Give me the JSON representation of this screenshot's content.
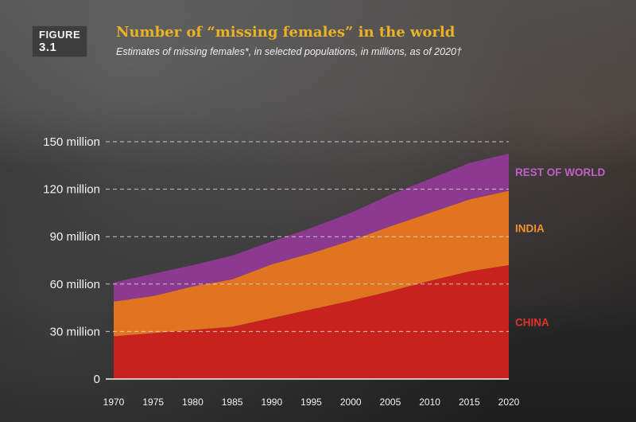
{
  "header": {
    "figure_prefix": "FIGURE",
    "figure_number": "3.1",
    "title": "Number of “missing females” in the world",
    "subtitle": "Estimates of missing females*, in selected populations, in millions, as of 2020†"
  },
  "colors": {
    "china": "#c8221e",
    "india": "#e07420",
    "rest_of_world": "#8b3a8f",
    "china_label": "#e0322a",
    "india_label": "#f0922e",
    "rest_label": "#c45ec8",
    "gridline": "#dddddd"
  },
  "chart_data": {
    "type": "area",
    "stacked": true,
    "title": "Number of “missing females” in the world",
    "x": [
      1970,
      1975,
      1980,
      1985,
      1990,
      1995,
      2000,
      2005,
      2010,
      2015,
      2020
    ],
    "series": [
      {
        "name": "CHINA",
        "key": "china",
        "values": [
          27,
          29,
          31,
          33,
          38.5,
          44,
          49.5,
          55.5,
          62,
          68,
          72
        ]
      },
      {
        "name": "INDIA",
        "key": "india",
        "values": [
          22,
          23.5,
          27.5,
          30,
          34,
          35.5,
          38,
          41,
          43,
          45.5,
          47
        ]
      },
      {
        "name": "REST OF WORLD",
        "key": "rest_of_world",
        "values": [
          12,
          14,
          13.5,
          15,
          14.5,
          16,
          17.5,
          20,
          21.5,
          23,
          23.5
        ]
      }
    ],
    "y_ticks": [
      0,
      30,
      60,
      90,
      120,
      150
    ],
    "y_tick_labels": [
      "0",
      "30 million",
      "60 million",
      "90 million",
      "120 million",
      "150 million"
    ],
    "x_tick_labels": [
      "1970",
      "1975",
      "1980",
      "1985",
      "1990",
      "1995",
      "2000",
      "2005",
      "2010",
      "2015",
      "2020"
    ],
    "ylim": [
      0,
      150
    ],
    "xlabel": "",
    "ylabel": "",
    "grid": "dashed-horizontal"
  }
}
